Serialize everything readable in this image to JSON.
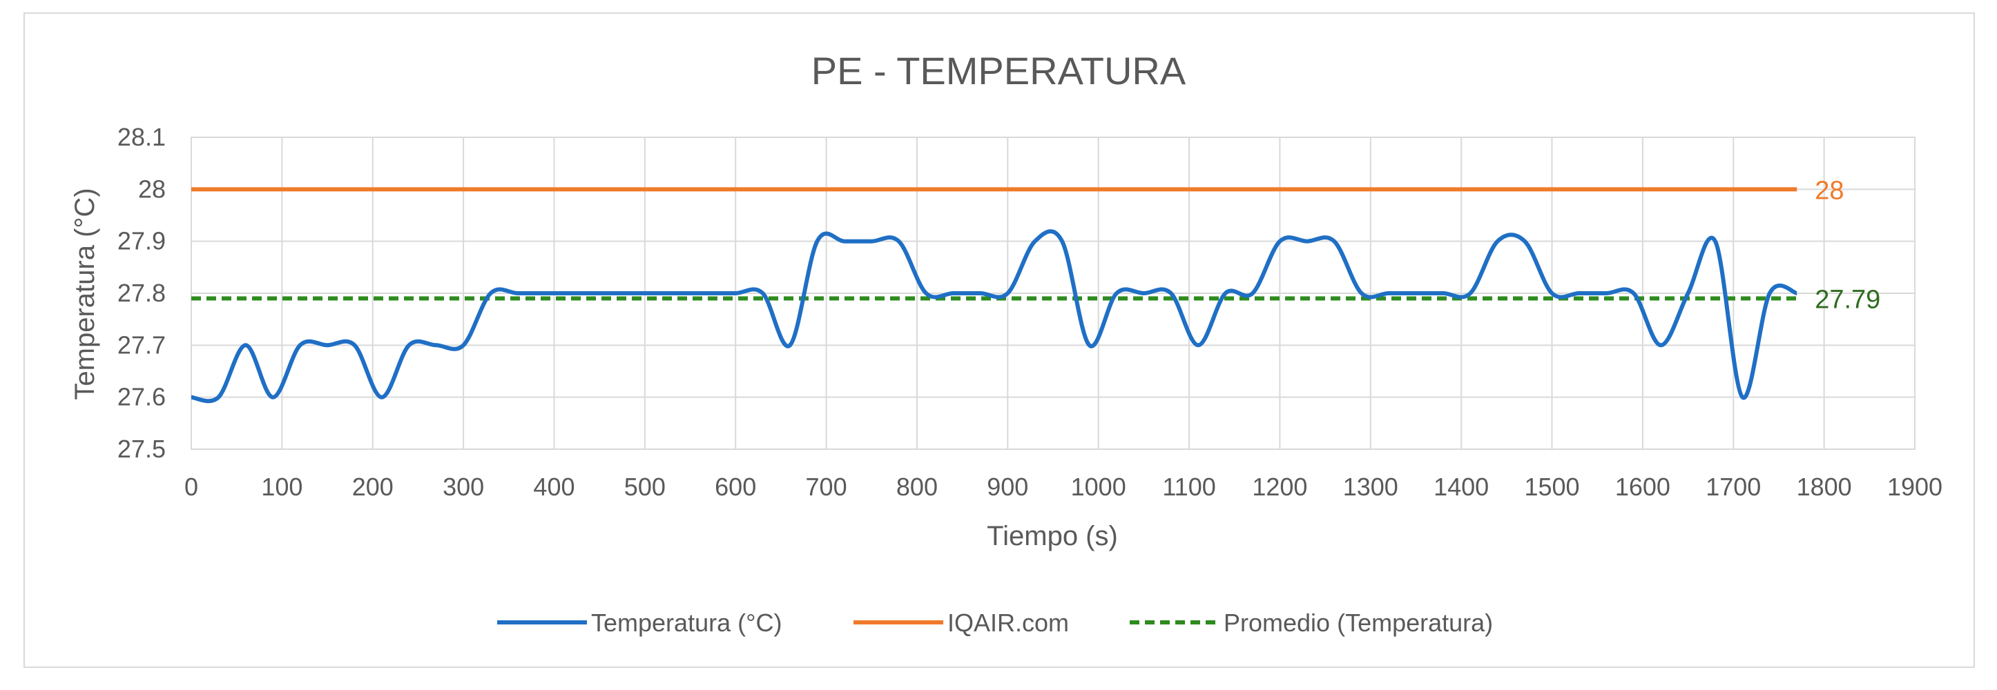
{
  "chart_data": {
    "type": "line",
    "title": "PE - TEMPERATURA",
    "xlabel": "Tiempo (s)",
    "ylabel": "Temperatura (°C)",
    "xlim": [
      0,
      1900
    ],
    "ylim": [
      27.5,
      28.1
    ],
    "x_ticks": [
      "0",
      "100",
      "200",
      "300",
      "400",
      "500",
      "600",
      "700",
      "800",
      "900",
      "1000",
      "1100",
      "1200",
      "1300",
      "1400",
      "1500",
      "1600",
      "1700",
      "1800",
      "1900"
    ],
    "y_ticks": [
      "27.5",
      "27.6",
      "27.7",
      "27.8",
      "27.9",
      "28",
      "28.1"
    ],
    "grid": true,
    "legend_position": "bottom",
    "series": [
      {
        "name": "Temperatura (°C)",
        "color": "#1f6fc5",
        "style": "solid",
        "x": [
          0,
          30,
          60,
          90,
          120,
          150,
          180,
          210,
          240,
          270,
          300,
          330,
          360,
          390,
          420,
          450,
          480,
          510,
          540,
          570,
          600,
          630,
          660,
          690,
          720,
          750,
          780,
          810,
          840,
          870,
          900,
          930,
          960,
          990,
          1020,
          1050,
          1080,
          1110,
          1140,
          1170,
          1200,
          1230,
          1260,
          1290,
          1320,
          1350,
          1380,
          1410,
          1440,
          1470,
          1500,
          1530,
          1560,
          1590,
          1620,
          1650,
          1680,
          1710,
          1740,
          1770
        ],
        "values": [
          27.6,
          27.6,
          27.7,
          27.6,
          27.7,
          27.7,
          27.7,
          27.6,
          27.7,
          27.7,
          27.7,
          27.8,
          27.8,
          27.8,
          27.8,
          27.8,
          27.8,
          27.8,
          27.8,
          27.8,
          27.8,
          27.8,
          27.7,
          27.9,
          27.9,
          27.9,
          27.9,
          27.8,
          27.8,
          27.8,
          27.8,
          27.9,
          27.9,
          27.7,
          27.8,
          27.8,
          27.8,
          27.7,
          27.8,
          27.8,
          27.9,
          27.9,
          27.9,
          27.8,
          27.8,
          27.8,
          27.8,
          27.8,
          27.9,
          27.9,
          27.8,
          27.8,
          27.8,
          27.8,
          27.7,
          27.8,
          27.9,
          27.6,
          27.8,
          27.8
        ]
      },
      {
        "name": "IQAIR.com",
        "color": "#f07a2a",
        "style": "solid",
        "x": [
          0,
          1770
        ],
        "values": [
          28,
          28
        ],
        "end_label": "28"
      },
      {
        "name": "Promedio (Temperatura)",
        "color": "#2e8b1e",
        "style": "dashed",
        "x": [
          0,
          1770
        ],
        "values": [
          27.79,
          27.79
        ],
        "end_label": "27.79",
        "end_label_color": "#2e6b1e"
      }
    ]
  }
}
